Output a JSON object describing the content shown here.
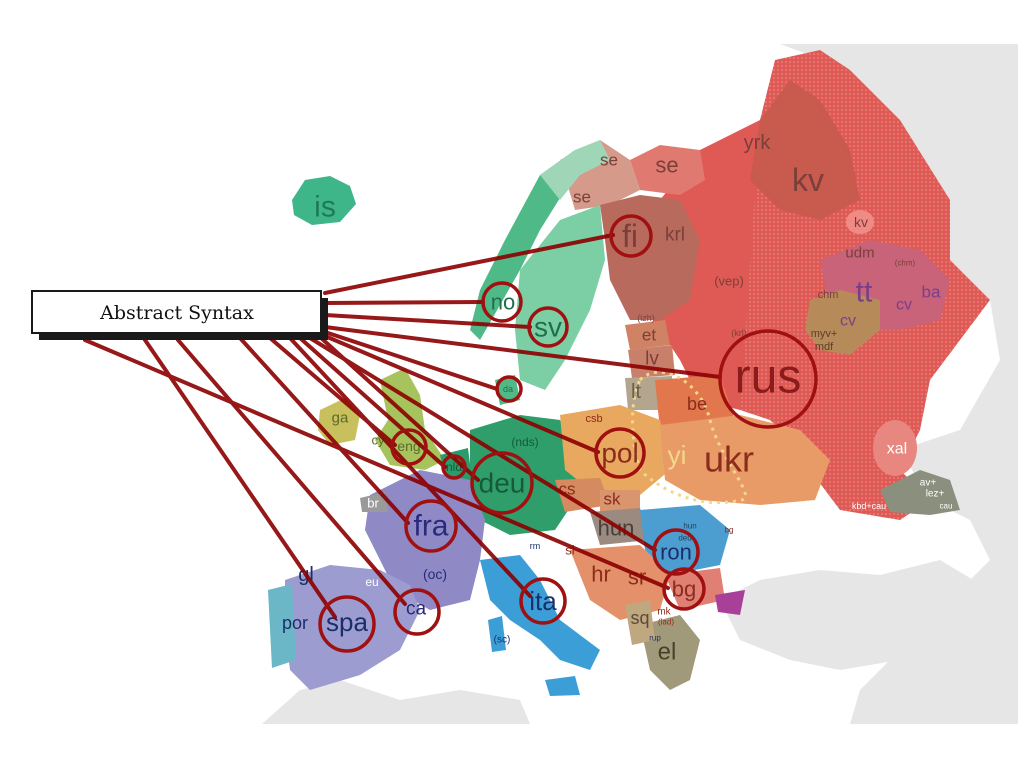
{
  "box": {
    "label": "Abstract Syntax"
  },
  "colors": {
    "uralic": "#d9534f",
    "germanic": "#3fb58a",
    "romance": "#8a88c2",
    "slavic": "#e7a35a",
    "line": "#8b0000",
    "sea": "#ffffff",
    "neighbor_land": "#e6e6e6"
  },
  "labels": {
    "is": "is",
    "se1": "se",
    "se2": "se",
    "se3": "se",
    "yrk": "yrk",
    "kv": "kv",
    "kv2": "kv",
    "fi": "fi",
    "krl": "krl",
    "udm": "udm",
    "chm": "(chm)",
    "tt": "tt",
    "ba": "ba",
    "chm2": "chm",
    "cv": "cv",
    "cv2": "cv",
    "myv": "myv+\nmdf",
    "vep": "(vep)",
    "izh": "(izh)",
    "krl2": "(krl)",
    "no": "no",
    "sv": "sv",
    "et": "et",
    "lv": "lv",
    "lt": "lt",
    "rus": "rus",
    "be": "be",
    "da": "da",
    "ga": "ga",
    "cy": "cy",
    "eng": "eng",
    "nld": "nld",
    "nds": "(nds)",
    "deu": "deu",
    "csb": "csb",
    "pol": "pol",
    "yi": "yi",
    "ukr": "ukr",
    "xal": "xal",
    "cs": "cs",
    "sk": "sk",
    "hun": "hun",
    "ron": "ron",
    "deu2": "deu",
    "hun2": "hun",
    "bg_small": "bg",
    "br": "br",
    "fra": "fra",
    "oc": "(oc)",
    "rm": "rm",
    "rm2": "rm",
    "sl": "sl",
    "hr": "hr",
    "sr": "sr",
    "bg": "bg",
    "gl": "gl",
    "eu": "eu",
    "ca": "ca",
    "spa": "spa",
    "por": "por",
    "ita": "ita",
    "sc": "(sc)",
    "sq": "sq",
    "mk": "mk",
    "lad": "(lad)",
    "rup": "rup",
    "el": "el",
    "av": "av+\nlez+",
    "kbd": "kbd+cau",
    "cau": "cau"
  },
  "connections": [
    "fi",
    "no",
    "sv",
    "rus",
    "da",
    "pol",
    "eng",
    "nld",
    "deu",
    "ron",
    "fra",
    "bg",
    "ita",
    "ca",
    "spa"
  ]
}
